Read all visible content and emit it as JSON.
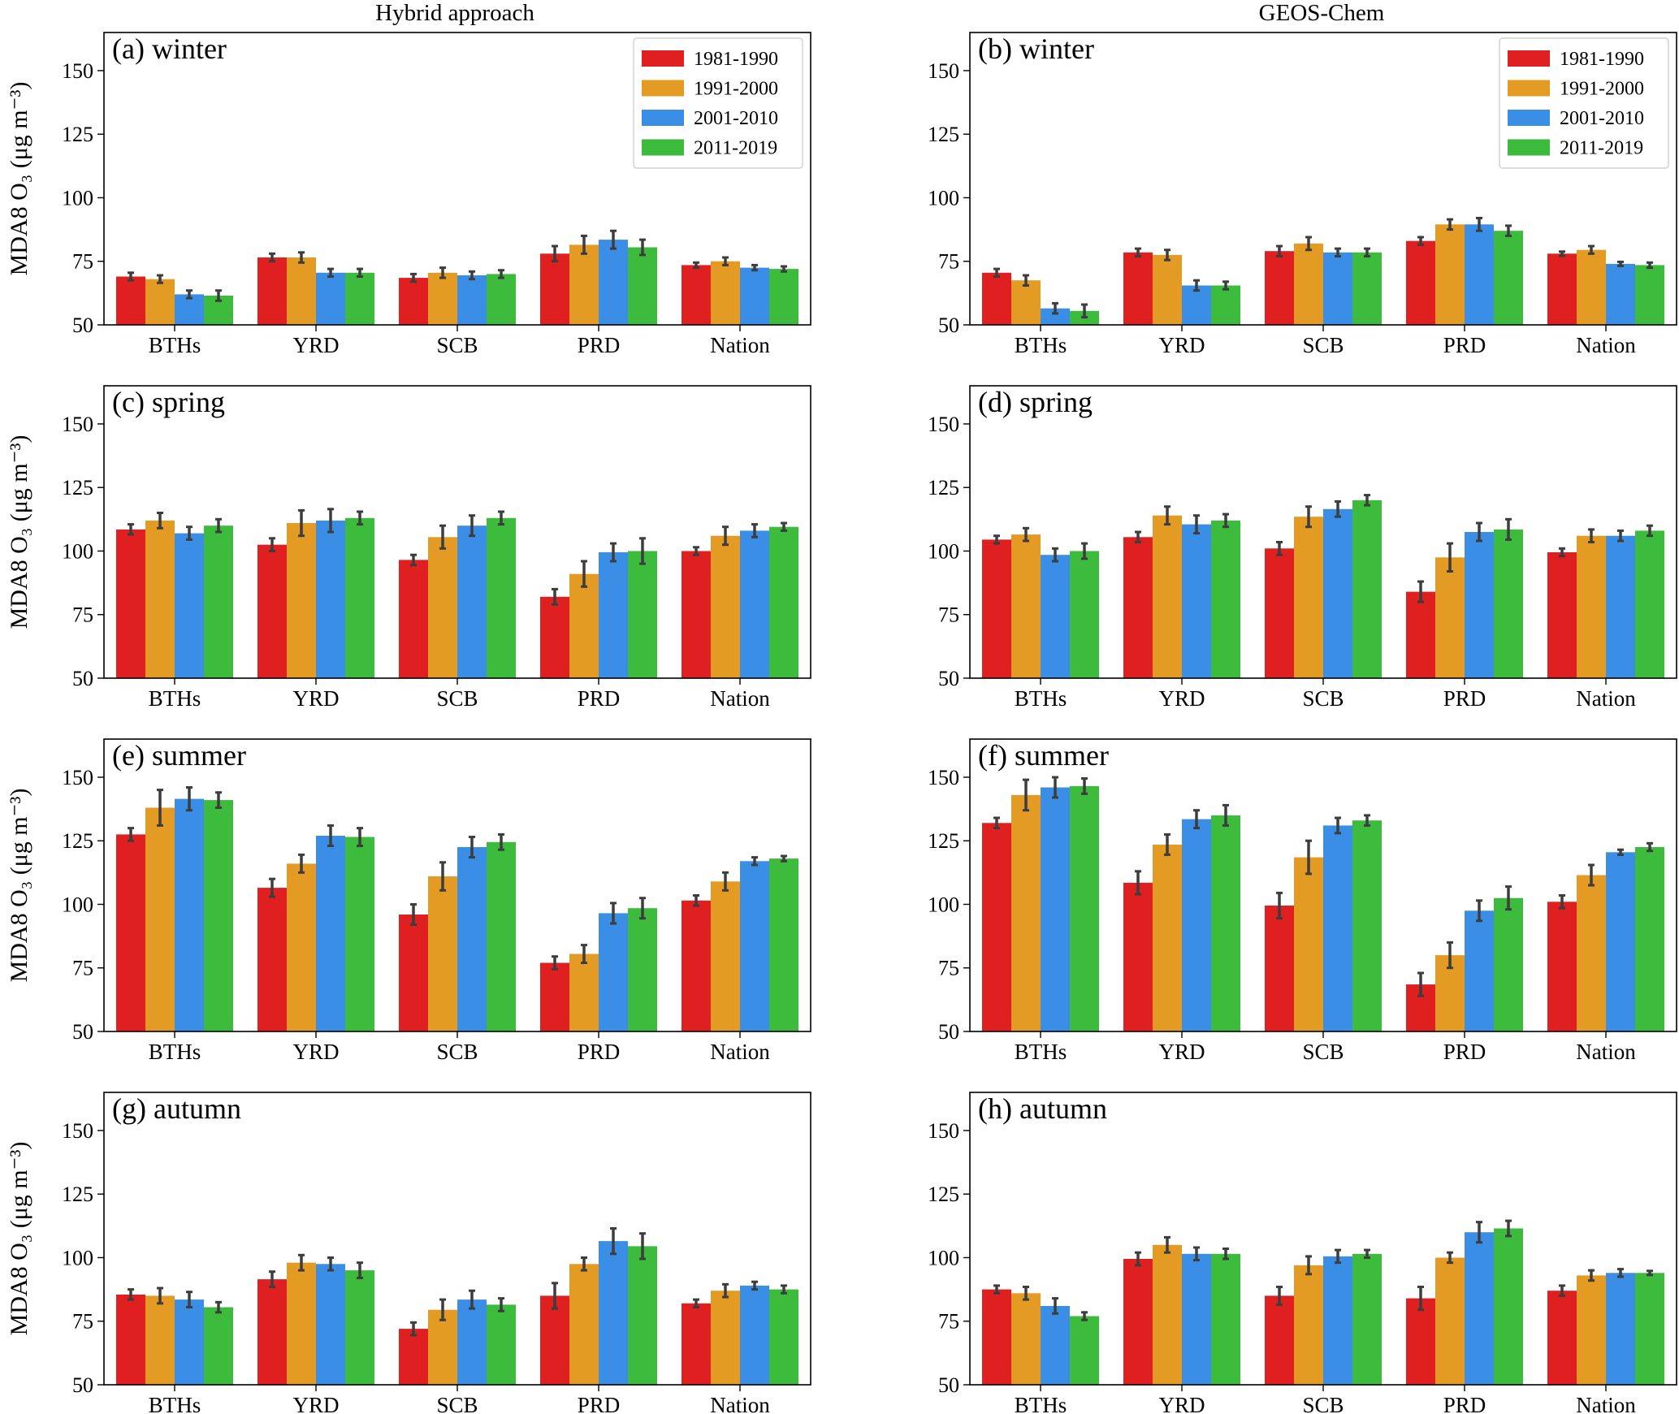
{
  "figure": {
    "column_titles": [
      "Hybrid approach",
      "GEOS-Chem"
    ],
    "ylabel": "MDA8 O₃ (μg m⁻³)"
  },
  "colors": {
    "series": [
      "#e01f20",
      "#e39b23",
      "#3a8ee6",
      "#3dbb3d"
    ],
    "errorbar": "#3d3d3d",
    "axis": "#000000"
  },
  "chart_data": [
    {
      "type": "bar",
      "title": "(a) winter",
      "categories": [
        "BTHs",
        "YRD",
        "SCB",
        "PRD",
        "Nation"
      ],
      "ylim": [
        50,
        165
      ],
      "yticks": [
        50,
        75,
        100,
        125,
        150
      ],
      "ylabel": "MDA8 O₃ (μg m⁻³)",
      "legend": "top-right",
      "series": [
        {
          "name": "1981-1990",
          "values": [
            69,
            76.5,
            68.5,
            78,
            73.5
          ],
          "err": [
            1.5,
            1.5,
            1.5,
            3,
            1
          ]
        },
        {
          "name": "1991-2000",
          "values": [
            68,
            76.5,
            70.5,
            81.5,
            75
          ],
          "err": [
            1.5,
            2,
            2,
            3.5,
            1.5
          ]
        },
        {
          "name": "2001-2010",
          "values": [
            62,
            70.5,
            69.5,
            83.5,
            72.5
          ],
          "err": [
            1.5,
            1.5,
            1.5,
            3.5,
            1
          ]
        },
        {
          "name": "2011-2019",
          "values": [
            61.5,
            70.5,
            70,
            80.5,
            72
          ],
          "err": [
            2,
            1.5,
            1.5,
            3,
            1
          ]
        }
      ]
    },
    {
      "type": "bar",
      "title": "(b) winter",
      "categories": [
        "BTHs",
        "YRD",
        "SCB",
        "PRD",
        "Nation"
      ],
      "ylim": [
        50,
        165
      ],
      "yticks": [
        50,
        75,
        100,
        125,
        150
      ],
      "ylabel": "",
      "legend": "top-right",
      "series": [
        {
          "name": "1981-1990",
          "values": [
            70.5,
            78.5,
            79,
            83,
            78
          ],
          "err": [
            1.5,
            1.5,
            2,
            1.5,
            0.8
          ]
        },
        {
          "name": "1991-2000",
          "values": [
            67.5,
            77.5,
            82,
            89.5,
            79.5
          ],
          "err": [
            2,
            2,
            2.5,
            2,
            1.5
          ]
        },
        {
          "name": "2001-2010",
          "values": [
            56.5,
            65.5,
            78.5,
            89.5,
            74
          ],
          "err": [
            2,
            2,
            1.5,
            2.5,
            0.8
          ]
        },
        {
          "name": "2011-2019",
          "values": [
            55.5,
            65.5,
            78.5,
            87,
            73.5
          ],
          "err": [
            2.5,
            1.5,
            1.5,
            2,
            1
          ]
        }
      ]
    },
    {
      "type": "bar",
      "title": "(c) spring",
      "categories": [
        "BTHs",
        "YRD",
        "SCB",
        "PRD",
        "Nation"
      ],
      "ylim": [
        50,
        165
      ],
      "yticks": [
        50,
        75,
        100,
        125,
        150
      ],
      "ylabel": "MDA8 O₃ (μg m⁻³)",
      "series": [
        {
          "name": "1981-1990",
          "values": [
            108.5,
            102.5,
            96.5,
            82,
            100
          ],
          "err": [
            2,
            2.5,
            2,
            3,
            1.5
          ]
        },
        {
          "name": "1991-2000",
          "values": [
            112,
            111,
            105.5,
            91,
            106
          ],
          "err": [
            3,
            5,
            4.5,
            5,
            3.5
          ]
        },
        {
          "name": "2001-2010",
          "values": [
            107,
            112,
            110,
            99.5,
            108
          ],
          "err": [
            2.5,
            4.5,
            4,
            3.5,
            2.5
          ]
        },
        {
          "name": "2011-2019",
          "values": [
            110,
            113,
            113,
            100,
            109.5
          ],
          "err": [
            2.5,
            2.5,
            2.5,
            5,
            1.5
          ]
        }
      ]
    },
    {
      "type": "bar",
      "title": "(d) spring",
      "categories": [
        "BTHs",
        "YRD",
        "SCB",
        "PRD",
        "Nation"
      ],
      "ylim": [
        50,
        165
      ],
      "yticks": [
        50,
        75,
        100,
        125,
        150
      ],
      "ylabel": "",
      "series": [
        {
          "name": "1981-1990",
          "values": [
            104.5,
            105.5,
            101,
            84,
            99.5
          ],
          "err": [
            1.5,
            2,
            2.5,
            4,
            1.5
          ]
        },
        {
          "name": "1991-2000",
          "values": [
            106.5,
            114,
            113.5,
            97.5,
            106
          ],
          "err": [
            2.5,
            3.5,
            4,
            5.5,
            2.5
          ]
        },
        {
          "name": "2001-2010",
          "values": [
            98.5,
            110.5,
            116.5,
            107.5,
            106
          ],
          "err": [
            2.5,
            3.5,
            3,
            3.5,
            2
          ]
        },
        {
          "name": "2011-2019",
          "values": [
            100,
            112,
            120,
            108.5,
            108
          ],
          "err": [
            3,
            2.5,
            2,
            4,
            2
          ]
        }
      ]
    },
    {
      "type": "bar",
      "title": "(e) summer",
      "categories": [
        "BTHs",
        "YRD",
        "SCB",
        "PRD",
        "Nation"
      ],
      "ylim": [
        50,
        165
      ],
      "yticks": [
        50,
        75,
        100,
        125,
        150
      ],
      "ylabel": "MDA8 O₃ (μg m⁻³)",
      "series": [
        {
          "name": "1981-1990",
          "values": [
            127.5,
            106.5,
            96,
            77,
            101.5
          ],
          "err": [
            2.5,
            3.5,
            4,
            2.5,
            2
          ]
        },
        {
          "name": "1991-2000",
          "values": [
            138,
            116,
            111,
            80.5,
            109
          ],
          "err": [
            7,
            3.5,
            5.5,
            3.5,
            3.5
          ]
        },
        {
          "name": "2001-2010",
          "values": [
            141.5,
            127,
            122.5,
            96.5,
            117
          ],
          "err": [
            4.5,
            4,
            4,
            4,
            1.5
          ]
        },
        {
          "name": "2011-2019",
          "values": [
            141,
            126.5,
            124.5,
            98.5,
            118
          ],
          "err": [
            3,
            3.5,
            3,
            4,
            1
          ]
        }
      ]
    },
    {
      "type": "bar",
      "title": "(f) summer",
      "categories": [
        "BTHs",
        "YRD",
        "SCB",
        "PRD",
        "Nation"
      ],
      "ylim": [
        50,
        165
      ],
      "yticks": [
        50,
        75,
        100,
        125,
        150
      ],
      "ylabel": "",
      "series": [
        {
          "name": "1981-1990",
          "values": [
            132,
            108.5,
            99.5,
            68.5,
            101
          ],
          "err": [
            2,
            4.5,
            5,
            4.5,
            2.5
          ]
        },
        {
          "name": "1991-2000",
          "values": [
            143,
            123.5,
            118.5,
            80,
            111.5
          ],
          "err": [
            6,
            4,
            6.5,
            5,
            4
          ]
        },
        {
          "name": "2001-2010",
          "values": [
            146,
            133.5,
            131,
            97.5,
            120.5
          ],
          "err": [
            4,
            3.5,
            3,
            4,
            1
          ]
        },
        {
          "name": "2011-2019",
          "values": [
            146.5,
            135,
            133,
            102.5,
            122.5
          ],
          "err": [
            3,
            4,
            2,
            4.5,
            1.5
          ]
        }
      ]
    },
    {
      "type": "bar",
      "title": "(g) autumn",
      "categories": [
        "BTHs",
        "YRD",
        "SCB",
        "PRD",
        "Nation"
      ],
      "ylim": [
        50,
        165
      ],
      "yticks": [
        50,
        75,
        100,
        125,
        150
      ],
      "ylabel": "MDA8 O₃ (μg m⁻³)",
      "series": [
        {
          "name": "1981-1990",
          "values": [
            85.5,
            91.5,
            72,
            85,
            82
          ],
          "err": [
            2,
            3,
            2.5,
            5,
            1.5
          ]
        },
        {
          "name": "1991-2000",
          "values": [
            85,
            98,
            79.5,
            97.5,
            87
          ],
          "err": [
            3,
            3,
            4,
            2.5,
            2.5
          ]
        },
        {
          "name": "2001-2010",
          "values": [
            83.5,
            97.5,
            83.5,
            106.5,
            89
          ],
          "err": [
            3,
            2.5,
            3.5,
            5,
            1.5
          ]
        },
        {
          "name": "2011-2019",
          "values": [
            80.5,
            95,
            81.5,
            104.5,
            87.5
          ],
          "err": [
            2,
            3,
            2.5,
            5,
            1.5
          ]
        }
      ]
    },
    {
      "type": "bar",
      "title": "(h) autumn",
      "categories": [
        "BTHs",
        "YRD",
        "SCB",
        "PRD",
        "Nation"
      ],
      "ylim": [
        50,
        165
      ],
      "yticks": [
        50,
        75,
        100,
        125,
        150
      ],
      "ylabel": "",
      "series": [
        {
          "name": "1981-1990",
          "values": [
            87.5,
            99.5,
            85,
            84,
            87
          ],
          "err": [
            1.5,
            2.5,
            3.5,
            4.5,
            2
          ]
        },
        {
          "name": "1991-2000",
          "values": [
            86,
            105,
            97,
            100,
            93
          ],
          "err": [
            2.5,
            3,
            3.5,
            2,
            2
          ]
        },
        {
          "name": "2001-2010",
          "values": [
            81,
            101.5,
            100.5,
            110,
            94
          ],
          "err": [
            3,
            2.5,
            2.5,
            4,
            1.5
          ]
        },
        {
          "name": "2011-2019",
          "values": [
            77,
            101.5,
            101.5,
            111.5,
            94
          ],
          "err": [
            1.5,
            2,
            1.5,
            3,
            0.8
          ]
        }
      ]
    }
  ]
}
